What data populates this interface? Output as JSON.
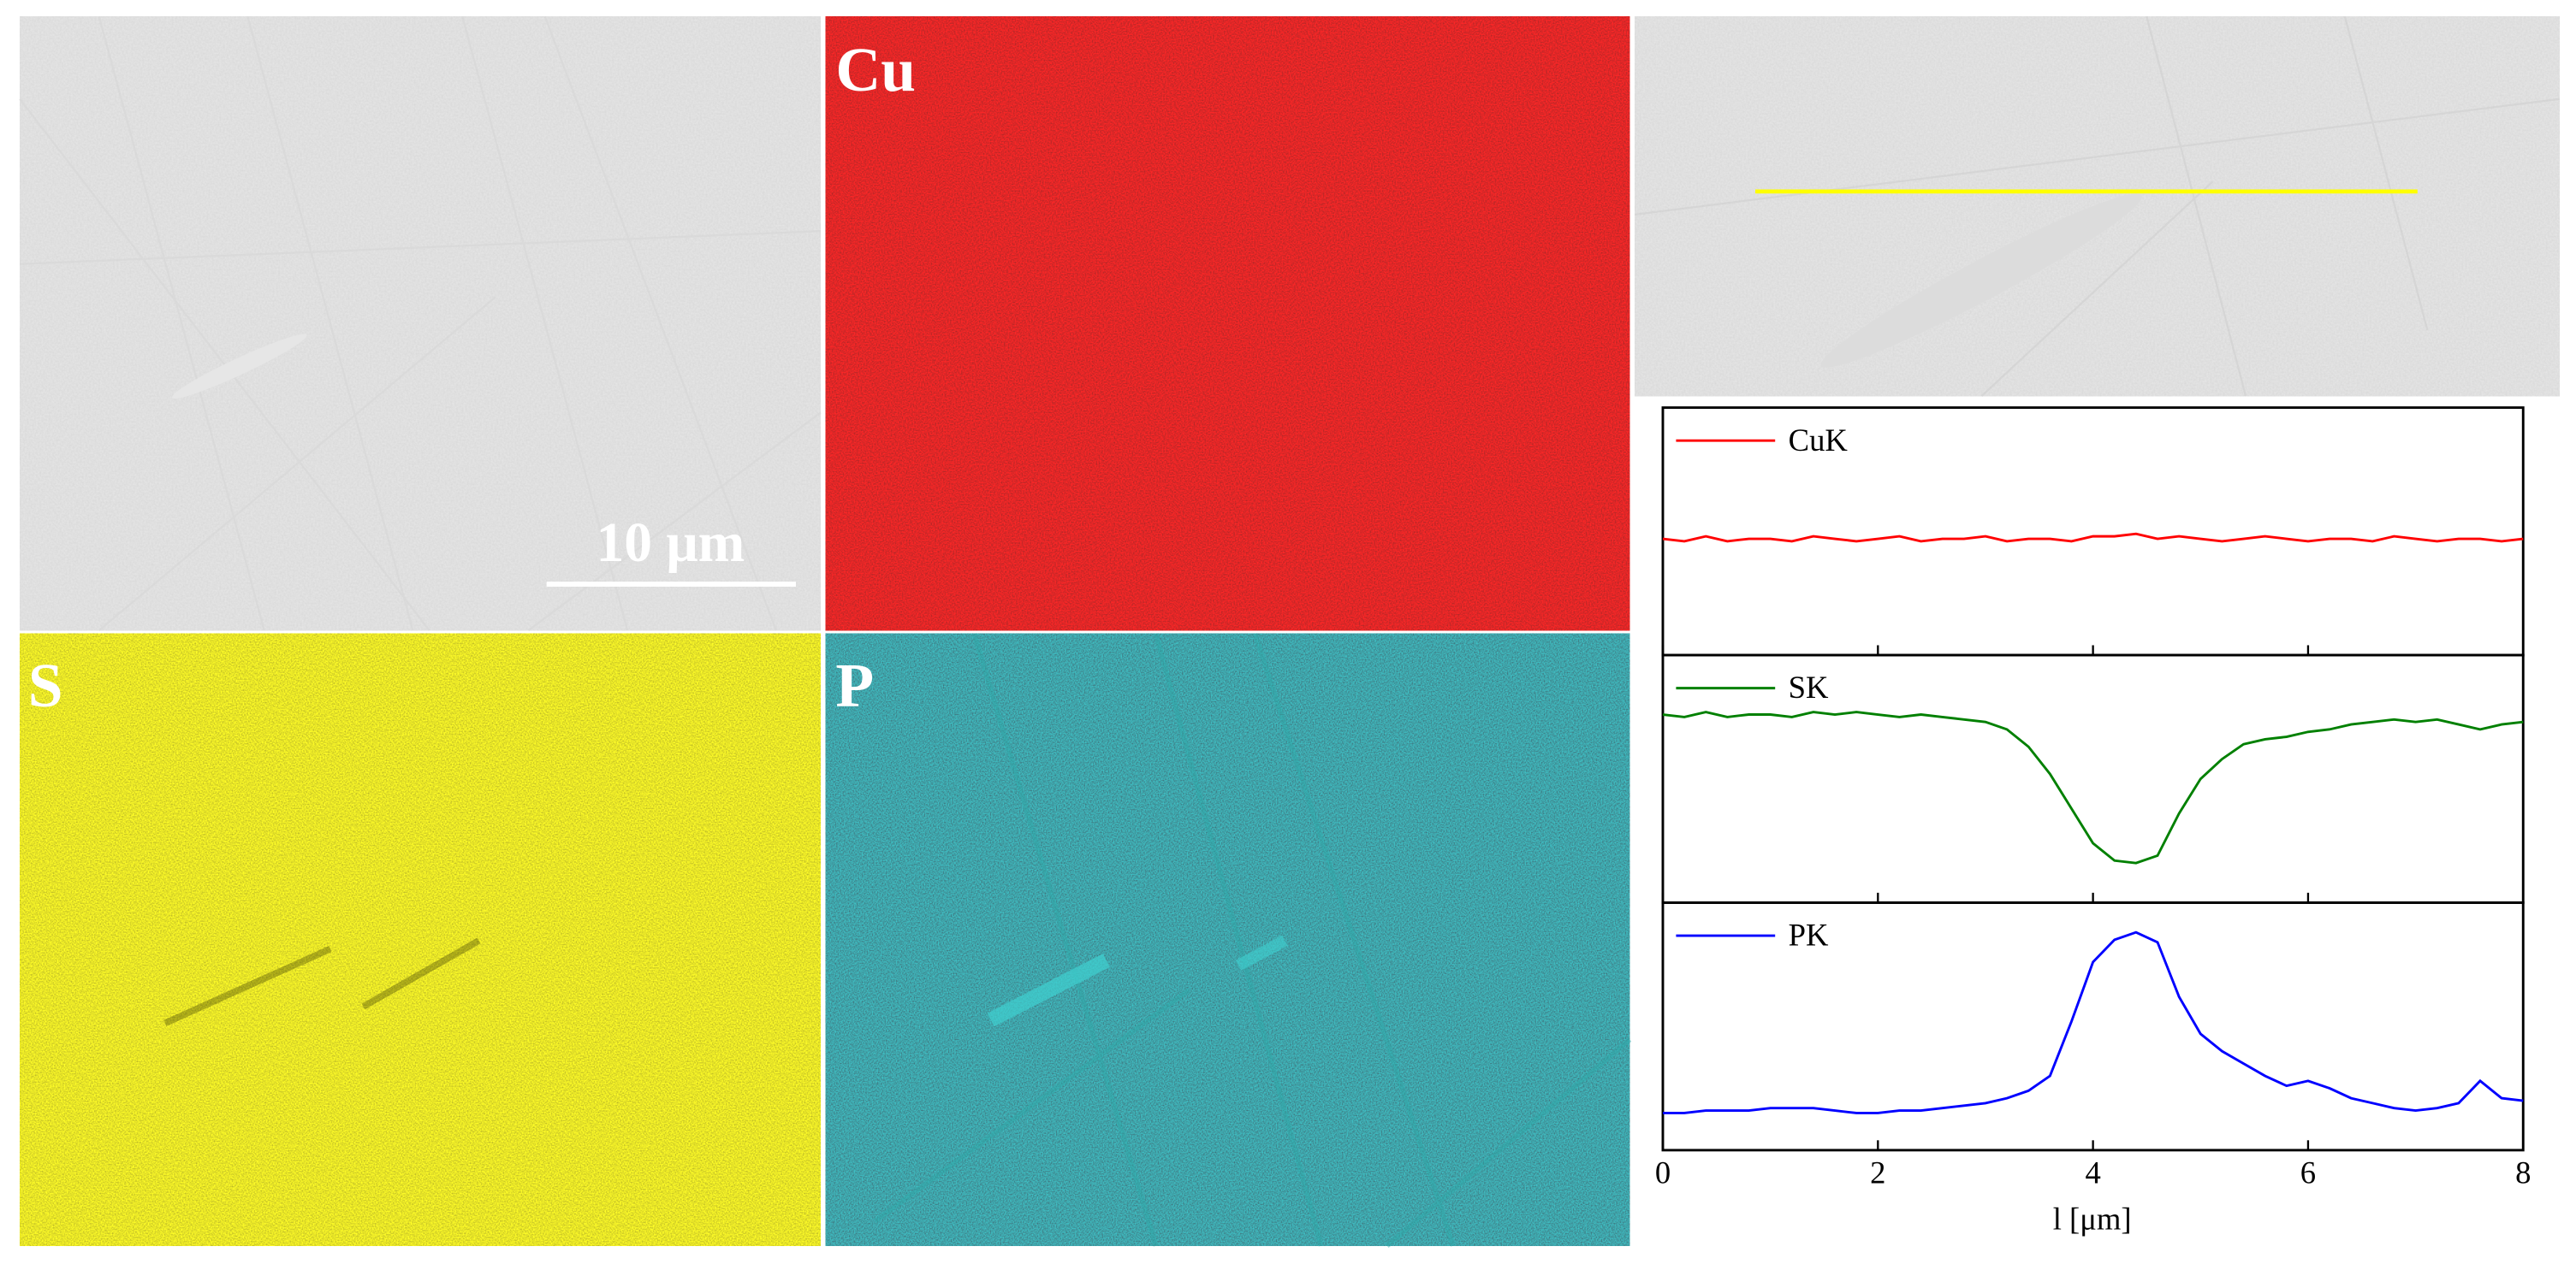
{
  "panels": {
    "cu": "Cu",
    "s": "S",
    "p": "P"
  },
  "scale_bar": "10 μm",
  "chart_data": {
    "type": "line",
    "xlabel": "l [μm]",
    "x": [
      0,
      0.2,
      0.4,
      0.6,
      0.8,
      1,
      1.2,
      1.4,
      1.6,
      1.8,
      2,
      2.2,
      2.4,
      2.6,
      2.8,
      3,
      3.2,
      3.4,
      3.6,
      3.8,
      4,
      4.2,
      4.4,
      4.6,
      4.8,
      5,
      5.2,
      5.4,
      5.6,
      5.8,
      6,
      6.2,
      6.4,
      6.6,
      6.8,
      7,
      7.2,
      7.4,
      7.6,
      7.8,
      8
    ],
    "xlim": [
      0,
      8
    ],
    "xticks": [
      0,
      2,
      4,
      6,
      8
    ],
    "ylim": [
      0,
      100
    ],
    "series": [
      {
        "name": "CuK",
        "color": "#ff0000",
        "values": [
          47,
          46,
          48,
          46,
          47,
          47,
          46,
          48,
          47,
          46,
          47,
          48,
          46,
          47,
          47,
          48,
          46,
          47,
          47,
          46,
          48,
          48,
          49,
          47,
          48,
          47,
          46,
          47,
          48,
          47,
          46,
          47,
          47,
          46,
          48,
          47,
          46,
          47,
          47,
          46,
          47
        ]
      },
      {
        "name": "SK",
        "color": "#008000",
        "values": [
          76,
          75,
          77,
          75,
          76,
          76,
          75,
          77,
          76,
          77,
          76,
          75,
          76,
          75,
          74,
          73,
          70,
          63,
          52,
          38,
          24,
          17,
          16,
          19,
          36,
          50,
          58,
          64,
          66,
          67,
          69,
          70,
          72,
          73,
          74,
          73,
          74,
          72,
          70,
          72,
          73
        ]
      },
      {
        "name": "PK",
        "color": "#0000ff",
        "values": [
          15,
          15,
          16,
          16,
          16,
          17,
          17,
          17,
          16,
          15,
          15,
          16,
          16,
          17,
          18,
          19,
          21,
          24,
          30,
          52,
          76,
          85,
          88,
          84,
          62,
          47,
          40,
          35,
          30,
          26,
          28,
          25,
          21,
          19,
          17,
          16,
          17,
          19,
          28,
          21,
          20
        ]
      }
    ]
  }
}
